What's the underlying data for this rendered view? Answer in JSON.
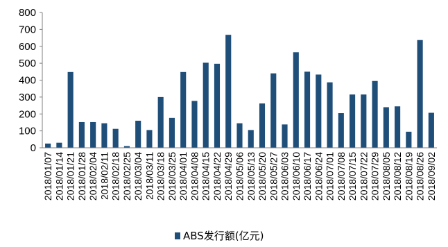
{
  "chart_data": {
    "type": "bar",
    "categories": [
      "2018/01/07",
      "2018/01/14",
      "2018/01/21",
      "2018/01/28",
      "2018/02/04",
      "2018/02/11",
      "2018/02/18",
      "2018/02/25",
      "2018/03/04",
      "2018/03/11",
      "2018/03/18",
      "2018/03/25",
      "2018/04/01",
      "2018/04/08",
      "2018/04/15",
      "2018/04/22",
      "2018/04/29",
      "2018/05/06",
      "2018/05/13",
      "2018/05/20",
      "2018/05/27",
      "2018/06/03",
      "2018/06/10",
      "2018/06/17",
      "2018/06/24",
      "2018/07/01",
      "2018/07/08",
      "2018/07/15",
      "2018/07/22",
      "2018/07/29",
      "2018/08/05",
      "2018/08/12",
      "2018/08/19",
      "2018/08/26",
      "2018/09/02"
    ],
    "series": [
      {
        "name": "ABS发行额(亿元)",
        "values": [
          25,
          30,
          448,
          152,
          152,
          145,
          112,
          10,
          160,
          105,
          300,
          177,
          448,
          277,
          503,
          497,
          668,
          145,
          105,
          262,
          440,
          138,
          565,
          450,
          433,
          387,
          205,
          315,
          315,
          395,
          240,
          245,
          95,
          637,
          207
        ]
      }
    ],
    "ylim": [
      0,
      800
    ],
    "yticks": [
      0,
      100,
      200,
      300,
      400,
      500,
      600,
      700,
      800
    ],
    "grid": false,
    "legend": "bottom-center",
    "colors": {
      "bar": "#1f4e79",
      "axis": "#7f7f7f"
    }
  }
}
